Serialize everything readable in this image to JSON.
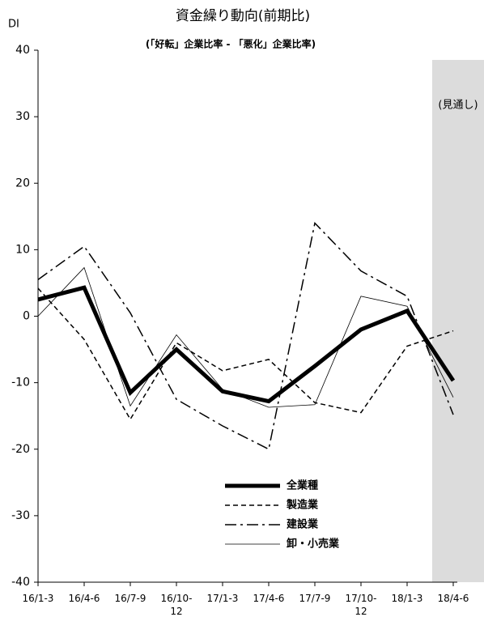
{
  "chart_data": {
    "type": "line",
    "title": "資金繰り動向(前期比)",
    "subtitle": "(「好転」企業比率 - 「悪化」企業比率)",
    "y_label": "DI",
    "annotation": "(見通し)",
    "categories": [
      "16/1-3",
      "16/4-6",
      "16/7-9",
      "16/10-\n12",
      "17/1-3",
      "17/4-6",
      "17/7-9",
      "17/10-\n12",
      "18/1-3",
      "18/4-6"
    ],
    "ylim": [
      -40,
      40
    ],
    "yticks": [
      -40,
      -30,
      -20,
      -10,
      0,
      10,
      20,
      30,
      40
    ],
    "legend": "bottom-center",
    "series": [
      {
        "name": "全業種",
        "color": "#000000",
        "width": 5,
        "dash": "solid",
        "values": [
          2.5,
          4.3,
          -11.5,
          -5.0,
          -11.3,
          -12.8,
          -7.5,
          -2.0,
          0.8,
          -9.7
        ]
      },
      {
        "name": "製造業",
        "color": "#000000",
        "width": 1.5,
        "dash": "dashed",
        "values": [
          4.2,
          -3.5,
          -15.5,
          -4.0,
          -8.2,
          -6.5,
          -13.0,
          -14.5,
          -4.5,
          -2.2
        ]
      },
      {
        "name": "建設業",
        "color": "#000000",
        "width": 1.5,
        "dash": "dashdot",
        "values": [
          5.5,
          10.5,
          0.5,
          -12.5,
          -16.5,
          -20.0,
          14.0,
          6.8,
          3.0,
          -14.8
        ]
      },
      {
        "name": "卸・小売業",
        "color": "#000000",
        "width": 0.8,
        "dash": "solid",
        "values": [
          0,
          7.3,
          -13.5,
          -2.8,
          -11.0,
          -13.7,
          -13.3,
          3.0,
          1.5,
          -12.2
        ]
      }
    ]
  }
}
